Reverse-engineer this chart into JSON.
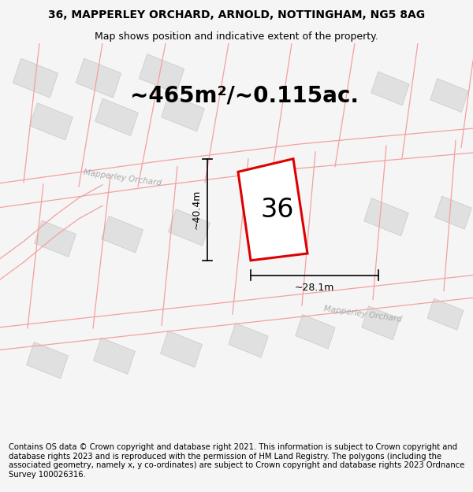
{
  "title": "36, MAPPERLEY ORCHARD, ARNOLD, NOTTINGHAM, NG5 8AG",
  "subtitle": "Map shows position and indicative extent of the property.",
  "area_text": "~465m²/~0.115ac.",
  "label_number": "36",
  "dim_height": "~40.4m",
  "dim_width": "~28.1m",
  "footer": "Contains OS data © Crown copyright and database right 2021. This information is subject to Crown copyright and database rights 2023 and is reproduced with the permission of HM Land Registry. The polygons (including the associated geometry, namely x, y co-ordinates) are subject to Crown copyright and database rights 2023 Ordnance Survey 100026316.",
  "bg_color": "#f5f5f5",
  "map_bg": "#ffffff",
  "bld_color": "#e0e0e0",
  "bld_edge": "#c8c8c8",
  "pink_line": "#f4a0a0",
  "red_polygon": "#dd0000",
  "title_fontsize": 10,
  "subtitle_fontsize": 9,
  "area_fontsize": 20,
  "label_fontsize": 24,
  "dim_fontsize": 9,
  "footer_fontsize": 7.2,
  "road_label_color": "#aaaaaa",
  "road_label_size": 7.5
}
